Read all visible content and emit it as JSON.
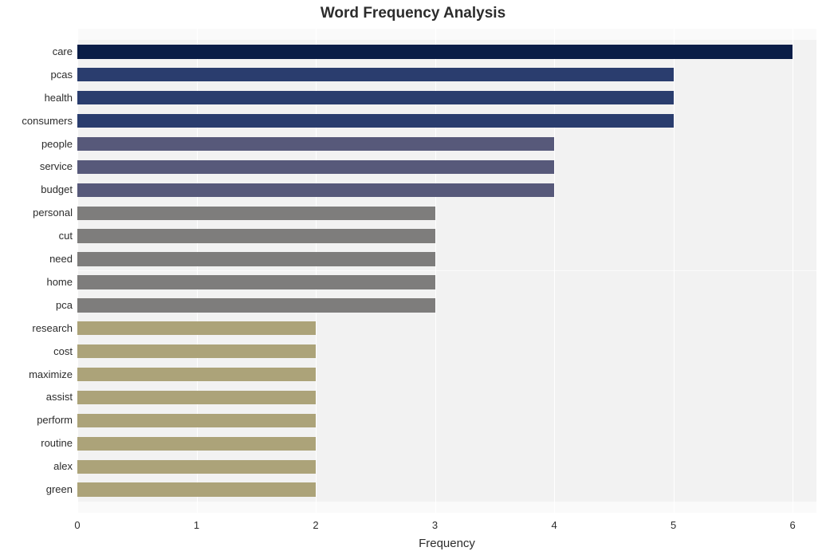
{
  "chart": {
    "type": "bar-horizontal",
    "title": "Word Frequency Analysis",
    "title_fontsize": 19,
    "title_fontweight": "bold",
    "xlabel": "Frequency",
    "xlabel_fontsize": 15,
    "x_ticks": [
      0,
      1,
      2,
      3,
      4,
      5,
      6
    ],
    "x_tick_fontsize": 13,
    "xlim": [
      0,
      6.2
    ],
    "y_tick_fontsize": 13,
    "plot_background": "#fafafa",
    "band_background": "#f2f2f2",
    "grid_color": "#ffffff",
    "bar_gap_ratio": 0.4,
    "data": [
      {
        "label": "care",
        "value": 6,
        "color": "#0a1d47"
      },
      {
        "label": "pcas",
        "value": 5,
        "color": "#2a3d6e"
      },
      {
        "label": "health",
        "value": 5,
        "color": "#2a3d6e"
      },
      {
        "label": "consumers",
        "value": 5,
        "color": "#2a3d6e"
      },
      {
        "label": "people",
        "value": 4,
        "color": "#57597a"
      },
      {
        "label": "service",
        "value": 4,
        "color": "#57597a"
      },
      {
        "label": "budget",
        "value": 4,
        "color": "#57597a"
      },
      {
        "label": "personal",
        "value": 3,
        "color": "#7e7d7c"
      },
      {
        "label": "cut",
        "value": 3,
        "color": "#7e7d7c"
      },
      {
        "label": "need",
        "value": 3,
        "color": "#7e7d7c"
      },
      {
        "label": "home",
        "value": 3,
        "color": "#7e7d7c"
      },
      {
        "label": "pca",
        "value": 3,
        "color": "#7e7d7c"
      },
      {
        "label": "research",
        "value": 2,
        "color": "#aca379"
      },
      {
        "label": "cost",
        "value": 2,
        "color": "#aca379"
      },
      {
        "label": "maximize",
        "value": 2,
        "color": "#aca379"
      },
      {
        "label": "assist",
        "value": 2,
        "color": "#aca379"
      },
      {
        "label": "perform",
        "value": 2,
        "color": "#aca379"
      },
      {
        "label": "routine",
        "value": 2,
        "color": "#aca379"
      },
      {
        "label": "alex",
        "value": 2,
        "color": "#aca379"
      },
      {
        "label": "green",
        "value": 2,
        "color": "#aca379"
      }
    ]
  }
}
